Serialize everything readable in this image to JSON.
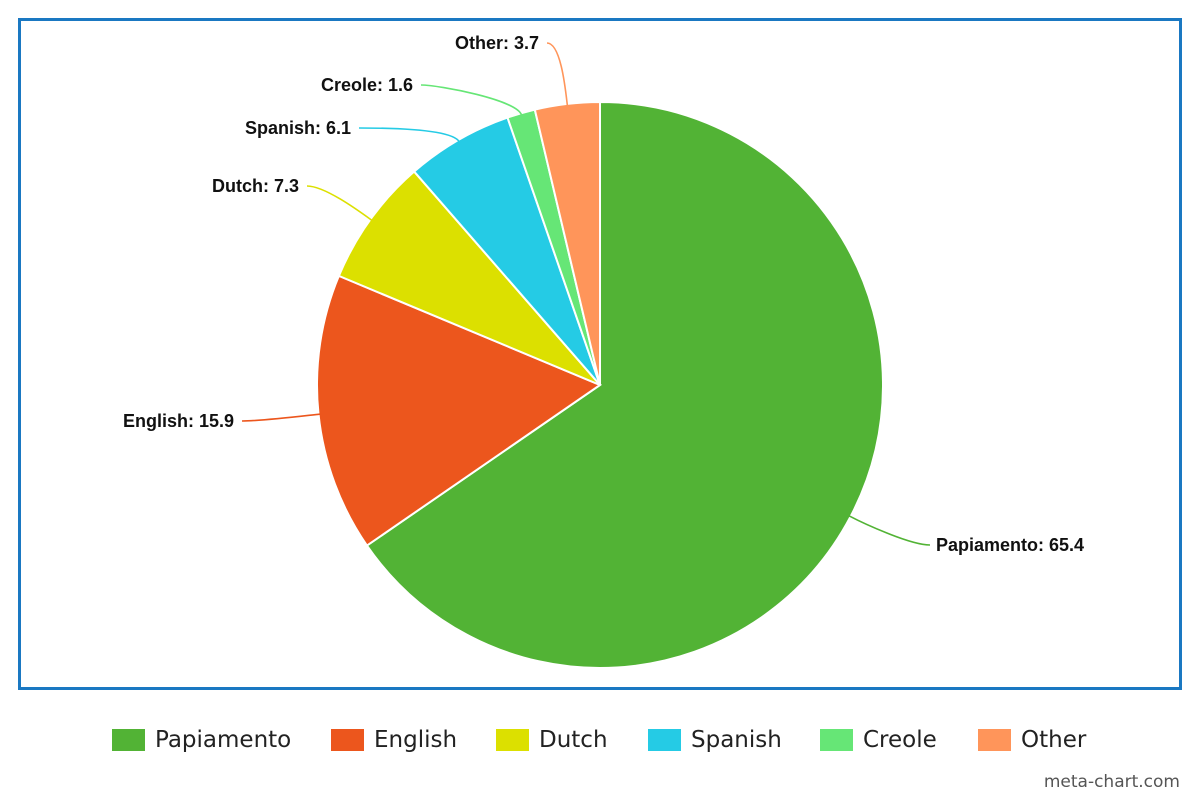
{
  "chart_data": {
    "type": "pie",
    "title": "",
    "start_angle_deg": 0,
    "direction": "clockwise",
    "slices": [
      {
        "name": "Papiamento",
        "value": 65.4,
        "label": "Papiamento: 65.4",
        "color": "#52b335"
      },
      {
        "name": "English",
        "value": 15.9,
        "label": "English: 15.9",
        "color": "#ec561d"
      },
      {
        "name": "Dutch",
        "value": 7.3,
        "label": "Dutch: 7.3",
        "color": "#dce000"
      },
      {
        "name": "Spanish",
        "value": 6.1,
        "label": "Spanish: 6.1",
        "color": "#25cbe5"
      },
      {
        "name": "Creole",
        "value": 1.6,
        "label": "Creole: 1.6",
        "color": "#66e676"
      },
      {
        "name": "Other",
        "value": 3.7,
        "label": "Other: 3.7",
        "color": "#ff955a"
      }
    ],
    "legend": {
      "placement": "bottom",
      "items": [
        {
          "label": "Papiamento",
          "color": "#52b335"
        },
        {
          "label": "English",
          "color": "#ec561d"
        },
        {
          "label": "Dutch",
          "color": "#dce000"
        },
        {
          "label": "Spanish",
          "color": "#25cbe5"
        },
        {
          "label": "Creole",
          "color": "#66e676"
        },
        {
          "label": "Other",
          "color": "#ff955a"
        }
      ]
    }
  },
  "frame_color": "#1a78c2",
  "watermark": "meta-chart.com"
}
